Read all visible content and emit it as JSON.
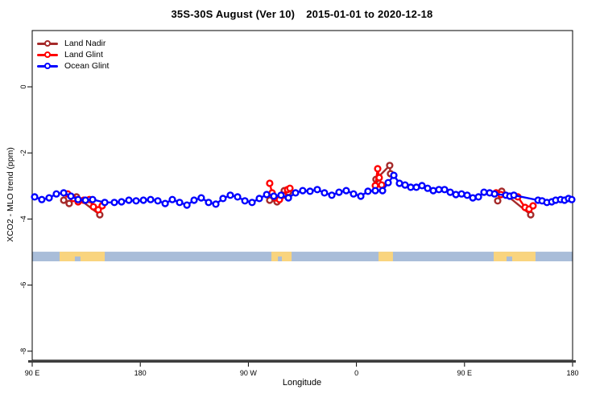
{
  "title": {
    "left": "35S-30S August (Ver 10)",
    "right": "2015-01-01 to 2020-12-18"
  },
  "legend": {
    "items": [
      {
        "label": "Land Nadir",
        "color": "#A52A2A"
      },
      {
        "label": "Land Glint",
        "color": "#FF0000"
      },
      {
        "label": "Ocean Glint",
        "color": "#0000FF"
      }
    ]
  },
  "chart_data": {
    "type": "scatter",
    "title": "35S-30S August (Ver 10)   2015-01-01 to 2020-12-18",
    "xlabel": "Longitude",
    "ylabel": "XCO2 - MLO trend (ppm)",
    "x_axis": {
      "note": "longitude axis wraps eastward: 90E to 180 to 90W to 0 to 90E to 180 (450 deg total)",
      "range_deg": [
        0,
        450
      ],
      "tick_deg": [
        0,
        90,
        180,
        270,
        360,
        450
      ],
      "tick_labels": [
        "90 E",
        "180",
        "90 W",
        "0",
        "90 E",
        "180"
      ]
    },
    "y_axis": {
      "range": [
        -8.3,
        1.7
      ],
      "ticks": [
        0,
        -2,
        -4,
        -6,
        -8
      ],
      "tick_labels": [
        "0",
        "-2",
        "-4",
        "-6",
        "-8"
      ],
      "grid": false
    },
    "series": [
      {
        "name": "Land Nadir",
        "color": "#A52A2A",
        "marker": "open-circle",
        "segments": [
          [
            [
              26.2,
              -3.43
            ],
            [
              30.8,
              -3.53
            ],
            [
              36.9,
              -3.33
            ],
            [
              56.3,
              -3.87
            ]
          ],
          [
            [
              197.8,
              -3.43
            ],
            [
              203.9,
              -3.48
            ],
            [
              209.9,
              -3.14
            ],
            [
              213.3,
              -3.19
            ]
          ],
          [
            [
              286.3,
              -2.8
            ],
            [
              297.7,
              -2.38
            ],
            [
              298.4,
              -2.63
            ]
          ],
          [
            [
              387.6,
              -3.45
            ],
            [
              391.0,
              -3.16
            ],
            [
              415.1,
              -3.87
            ]
          ]
        ]
      },
      {
        "name": "Land Glint",
        "color": "#FF0000",
        "marker": "open-circle",
        "segments": [
          [
            [
              29.5,
              -3.24
            ],
            [
              34.2,
              -3.38
            ],
            [
              38.2,
              -3.48
            ],
            [
              42.9,
              -3.43
            ],
            [
              47.6,
              -3.41
            ],
            [
              51.0,
              -3.63
            ],
            [
              55.0,
              -3.72
            ],
            [
              58.3,
              -3.6
            ]
          ],
          [
            [
              197.8,
              -2.92
            ],
            [
              199.8,
              -3.21
            ],
            [
              202.5,
              -3.36
            ],
            [
              205.9,
              -3.41
            ],
            [
              209.2,
              -3.28
            ],
            [
              212.6,
              -3.11
            ],
            [
              214.6,
              -3.07
            ]
          ],
          [
            [
              285.7,
              -2.99
            ],
            [
              287.7,
              -2.48
            ],
            [
              289.0,
              -2.75
            ],
            [
              291.0,
              -2.97
            ]
          ],
          [
            [
              386.3,
              -3.21
            ],
            [
              390.3,
              -3.26
            ],
            [
              404.4,
              -3.33
            ],
            [
              410.4,
              -3.65
            ],
            [
              413.8,
              -3.7
            ],
            [
              417.1,
              -3.6
            ]
          ]
        ]
      },
      {
        "name": "Ocean Glint",
        "color": "#0000FF",
        "marker": "open-circle",
        "segments": [
          [
            [
              2.0,
              -3.33
            ],
            [
              8.0,
              -3.41
            ],
            [
              14.1,
              -3.36
            ],
            [
              20.1,
              -3.24
            ],
            [
              26.2,
              -3.21
            ],
            [
              32.2,
              -3.31
            ],
            [
              38.2,
              -3.41
            ],
            [
              44.3,
              -3.43
            ],
            [
              50.3,
              -3.41
            ],
            [
              60.4,
              -3.5
            ],
            [
              68.4,
              -3.5
            ],
            [
              74.4,
              -3.48
            ],
            [
              80.5,
              -3.43
            ],
            [
              86.5,
              -3.45
            ],
            [
              92.6,
              -3.43
            ],
            [
              98.6,
              -3.41
            ],
            [
              104.6,
              -3.45
            ],
            [
              110.7,
              -3.53
            ],
            [
              116.7,
              -3.41
            ],
            [
              122.7,
              -3.5
            ],
            [
              128.8,
              -3.58
            ],
            [
              134.8,
              -3.43
            ],
            [
              140.8,
              -3.36
            ],
            [
              146.9,
              -3.5
            ],
            [
              152.9,
              -3.55
            ],
            [
              158.9,
              -3.38
            ],
            [
              165.0,
              -3.28
            ],
            [
              171.0,
              -3.33
            ],
            [
              177.1,
              -3.45
            ],
            [
              183.1,
              -3.5
            ],
            [
              189.1,
              -3.38
            ],
            [
              195.2,
              -3.26
            ],
            [
              201.2,
              -3.31
            ],
            [
              207.2,
              -3.28
            ],
            [
              213.3,
              -3.36
            ],
            [
              219.3,
              -3.21
            ],
            [
              225.3,
              -3.14
            ],
            [
              231.4,
              -3.16
            ],
            [
              237.4,
              -3.11
            ],
            [
              243.4,
              -3.21
            ],
            [
              249.5,
              -3.28
            ],
            [
              255.5,
              -3.19
            ],
            [
              261.5,
              -3.14
            ],
            [
              267.6,
              -3.24
            ],
            [
              273.6,
              -3.31
            ],
            [
              279.6,
              -3.16
            ],
            [
              285.7,
              -3.14
            ],
            [
              291.7,
              -3.14
            ],
            [
              296.4,
              -2.9
            ],
            [
              301.1,
              -2.68
            ],
            [
              305.8,
              -2.92
            ],
            [
              310.5,
              -2.97
            ],
            [
              315.2,
              -3.04
            ],
            [
              319.9,
              -3.04
            ],
            [
              324.6,
              -2.99
            ],
            [
              329.3,
              -3.07
            ],
            [
              334.0,
              -3.14
            ],
            [
              338.7,
              -3.11
            ],
            [
              343.4,
              -3.11
            ],
            [
              348.1,
              -3.19
            ],
            [
              352.8,
              -3.26
            ],
            [
              357.5,
              -3.24
            ],
            [
              362.2,
              -3.28
            ],
            [
              366.9,
              -3.36
            ],
            [
              371.6,
              -3.33
            ],
            [
              376.2,
              -3.19
            ],
            [
              380.9,
              -3.21
            ],
            [
              385.0,
              -3.24
            ],
            [
              394.4,
              -3.28
            ],
            [
              397.7,
              -3.31
            ],
            [
              401.1,
              -3.28
            ],
            [
              421.2,
              -3.43
            ],
            [
              424.6,
              -3.45
            ],
            [
              428.6,
              -3.5
            ],
            [
              432.6,
              -3.48
            ],
            [
              435.9,
              -3.43
            ],
            [
              440.0,
              -3.41
            ],
            [
              443.3,
              -3.43
            ],
            [
              446.6,
              -3.38
            ],
            [
              449.3,
              -3.41
            ]
          ]
        ]
      }
    ],
    "map_strip": {
      "description": "land/ocean mask band for the 35S-30S latitude zone",
      "y_top_ppm": -4.99,
      "y_bottom_ppm": -5.28,
      "ocean_color": "#A9BDD9",
      "land_color": "#F9D47E",
      "land_ranges_deg": [
        [
          22.8,
          60.4
        ],
        [
          199.2,
          216.0
        ],
        [
          288.4,
          300.4
        ],
        [
          384.3,
          419.1
        ]
      ],
      "ocean_notches_deg": [
        [
          35.5,
          40.2
        ],
        [
          204.6,
          207.9
        ],
        [
          395.0,
          399.7
        ]
      ]
    }
  }
}
